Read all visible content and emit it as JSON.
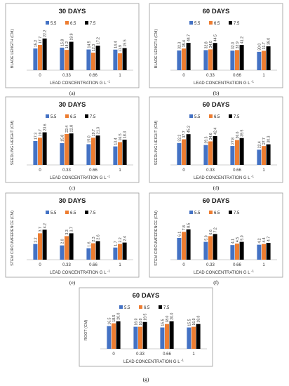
{
  "legend": {
    "labels": [
      "5.5",
      "6.5",
      "7.5"
    ],
    "colors": [
      "#4472C4",
      "#ED7D31",
      "#000000"
    ]
  },
  "chart_data": [
    {
      "type": "bar",
      "panel": "(a)",
      "title": "30 DAYS",
      "ylabel": "BLADE LENGTH (CM)",
      "xlabel": "LEAD CONCENTRATION G L",
      "categories": [
        "0",
        "0.33",
        "0.66",
        "1"
      ],
      "series": [
        {
          "name": "5.5",
          "values": [
            15.2,
            15.8,
            14.5,
            14.4
          ],
          "labels": [
            "15.2",
            "15.8",
            "14.5",
            "14.4"
          ]
        },
        {
          "name": "6.5",
          "values": [
            17.7,
            14.2,
            12.3,
            11.9
          ],
          "labels": [
            "17.7",
            "14.2",
            "12.3",
            "11.9"
          ]
        },
        {
          "name": "7.5",
          "values": [
            22.2,
            19.9,
            17.2,
            15.5
          ],
          "labels": [
            "22.2",
            "19.9",
            "17.2",
            "15.5"
          ]
        }
      ],
      "ylim": [
        0,
        30
      ]
    },
    {
      "type": "bar",
      "panel": "(b)",
      "title": "60 DAYS",
      "ylabel": "BLADE LENGTH (CM)",
      "xlabel": "LEAD CONCENTRATION G L",
      "categories": [
        "0",
        "0.33",
        "0.66",
        "1"
      ],
      "series": [
        {
          "name": "5.5",
          "values": [
            32.3,
            32.8,
            32.0,
            30.0
          ],
          "labels": [
            "32.3",
            "32.8",
            "32.0",
            "30.0"
          ]
        },
        {
          "name": "6.5",
          "values": [
            35.4,
            34.0,
            32.9,
            31.7
          ],
          "labels": [
            "35.4",
            "34.0",
            "32.9",
            "31.7"
          ]
        },
        {
          "name": "7.5",
          "values": [
            44.7,
            44.5,
            41.2,
            39.0
          ],
          "labels": [
            "44.7",
            "44.5",
            "41.2",
            "39.0"
          ]
        }
      ],
      "ylim": [
        0,
        70
      ]
    },
    {
      "type": "bar",
      "panel": "(c)",
      "title": "30 DAYS",
      "ylabel": "SEEDLING HEIGHT (CM)",
      "xlabel": "LEAD CONCENTRATION G L",
      "categories": [
        "0",
        "0.33",
        "0.66",
        "1"
      ],
      "series": [
        {
          "name": "5.5",
          "values": [
            17.3,
            15.8,
            15.0,
            13.4
          ],
          "labels": [
            "17.3",
            "15.8",
            "15.0",
            "13.4"
          ]
        },
        {
          "name": "6.5",
          "values": [
            19.7,
            22.4,
            19.7,
            16.5
          ],
          "labels": [
            "19.7",
            "22.4",
            "19.7",
            "16.5"
          ]
        },
        {
          "name": "7.5",
          "values": [
            23.6,
            22.8,
            21.3,
            18.3
          ],
          "labels": [
            "23.6",
            "22.8",
            "21.3",
            "18.3"
          ]
        }
      ],
      "ylim": [
        0,
        32
      ]
    },
    {
      "type": "bar",
      "panel": "(d)",
      "title": "60 DAYS",
      "ylabel": "SEEDLING HEIGHT (CM)",
      "xlabel": "LEAD CONCENTRATION G L",
      "categories": [
        "0",
        "0.33",
        "0.66",
        "1"
      ],
      "series": [
        {
          "name": "5.5",
          "values": [
            32.2,
            29.3,
            27.8,
            22.4
          ],
          "labels": [
            "32.2",
            "29.3",
            "27.8",
            "22.4"
          ]
        },
        {
          "name": "6.5",
          "values": [
            37.7,
            34.6,
            36.6,
            27.7
          ],
          "labels": [
            "37.7",
            "34.6",
            "36.6",
            "27.7"
          ]
        },
        {
          "name": "7.5",
          "values": [
            45.2,
            42.4,
            39.5,
            30.3
          ],
          "labels": [
            "45.2",
            "42.4",
            "39.5",
            "30.3"
          ]
        }
      ],
      "ylim": [
        0,
        65
      ]
    },
    {
      "type": "bar",
      "panel": "(e)",
      "title": "30 DAYS",
      "ylabel": "STEM CIRCUMFERENCE (CM)",
      "xlabel": "LEAD CONCENTRATION G L",
      "categories": [
        "0",
        "0.33",
        "0.66",
        "1"
      ],
      "series": [
        {
          "name": "5.5",
          "values": [
            2.2,
            2.0,
            1.6,
            1.7
          ],
          "labels": [
            "2.2",
            "2.0",
            "1.6",
            "1.7"
          ]
        },
        {
          "name": "6.5",
          "values": [
            3.7,
            3.3,
            2.3,
            2.2
          ],
          "labels": [
            "3.7",
            "3.3",
            "2.3",
            "2.2"
          ]
        },
        {
          "name": "7.5",
          "values": [
            4.2,
            3.7,
            2.6,
            2.4
          ],
          "labels": [
            "4.2",
            "3.7",
            "2.6",
            "2.4"
          ]
        }
      ],
      "ylim": [
        0,
        6
      ]
    },
    {
      "type": "bar",
      "panel": "(f)",
      "title": "60 DAYS",
      "ylabel": "STEM CIRCUMFERENCE (CM)",
      "xlabel": "LEAD CONCENTRATION G L",
      "categories": [
        "0",
        "0.33",
        "0.66",
        "1"
      ],
      "series": [
        {
          "name": "5.5",
          "values": [
            6.1,
            5.0,
            4.1,
            4.2
          ],
          "labels": [
            "6.1",
            "5.0",
            "4.1",
            "4.2"
          ]
        },
        {
          "name": "6.5",
          "values": [
            7.8,
            6.6,
            4.5,
            4.4
          ],
          "labels": [
            "7.8",
            "6.6",
            "4.5",
            "4.4"
          ]
        },
        {
          "name": "7.5",
          "values": [
            8.5,
            7.2,
            5.0,
            4.7
          ],
          "labels": [
            "8.5",
            "7.2",
            "5.0",
            "4.7"
          ]
        }
      ],
      "ylim": [
        0,
        12
      ]
    },
    {
      "type": "bar",
      "panel": "(g)",
      "title": "60 DAYS",
      "ylabel": "ROOT (CM)",
      "xlabel": "LEAD CONCENTRATION G L",
      "categories": [
        "0",
        "0.33",
        "0.66",
        "1"
      ],
      "series": [
        {
          "name": "5.5",
          "values": [
            16.5,
            16.0,
            15.5,
            15.5
          ],
          "labels": [
            "16.5",
            "16.0",
            "15.5",
            "15.5"
          ]
        },
        {
          "name": "6.5",
          "values": [
            18.5,
            16.0,
            18.0,
            16.0
          ],
          "labels": [
            "18.5",
            "16.0",
            "18.0",
            "16.0"
          ]
        },
        {
          "name": "7.5",
          "values": [
            20.0,
            19.5,
            20.0,
            18.0
          ],
          "labels": [
            "20.0",
            "19.5",
            "20.0",
            "18.0"
          ]
        }
      ],
      "ylim": [
        0,
        27
      ]
    }
  ]
}
